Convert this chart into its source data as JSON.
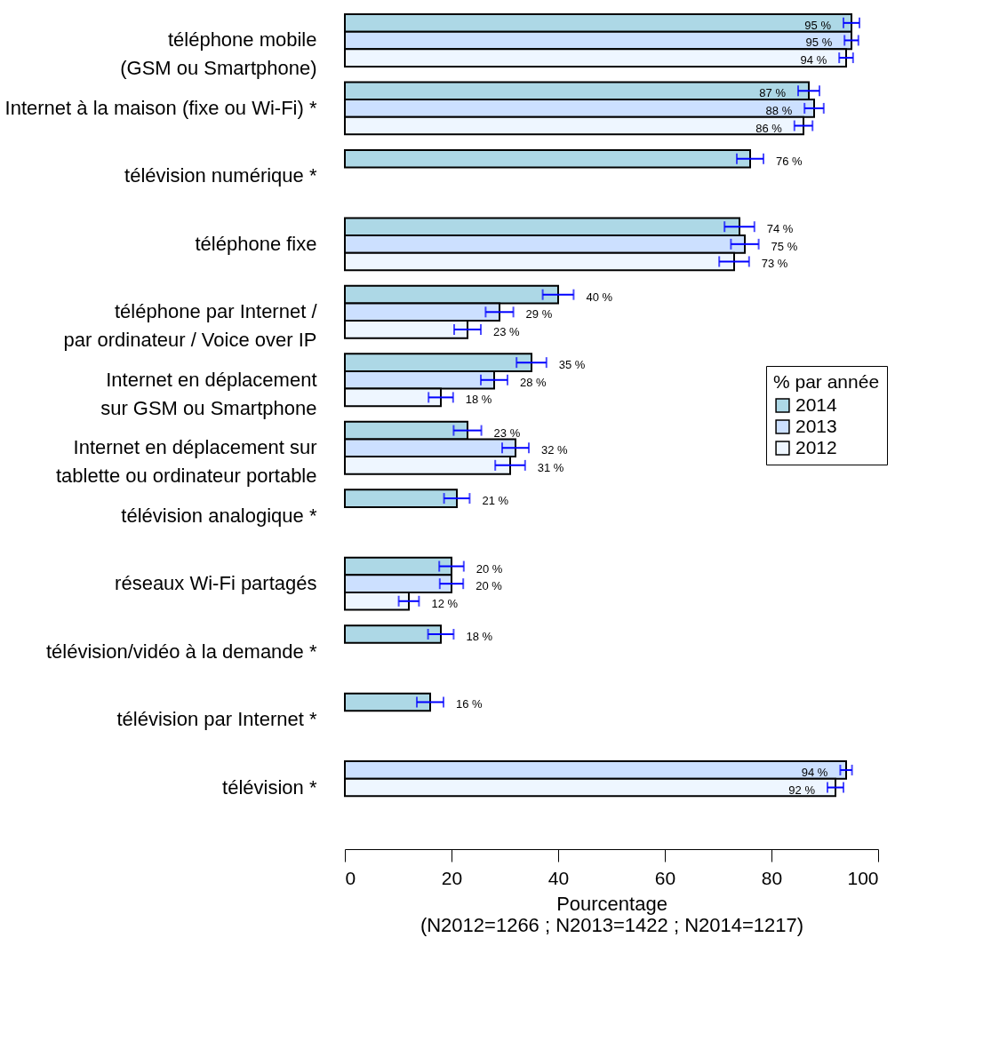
{
  "chart_data": {
    "type": "bar",
    "orientation": "horizontal",
    "categories": [
      "téléphone mobile \n(GSM ou Smartphone)",
      "Internet à la maison (fixe ou Wi-Fi) *",
      "télévision numérique *",
      "téléphone fixe",
      "téléphone par Internet /\npar ordinateur / Voice over IP",
      "Internet en déplacement \nsur GSM ou Smartphone",
      "Internet en déplacement sur \ntablette ou ordinateur portable",
      "télévision analogique *",
      "réseaux Wi-Fi partagés",
      "télévision/vidéo à la demande *",
      "télévision par Internet *",
      "télévision *"
    ],
    "series": [
      {
        "name": "2014",
        "color": "#add8e6",
        "values": [
          95,
          87,
          76,
          74,
          40,
          35,
          23,
          21,
          20,
          18,
          16,
          null
        ],
        "errors": [
          1.5,
          2,
          2.5,
          2.8,
          2.9,
          2.8,
          2.6,
          2.4,
          2.3,
          2.4,
          2.5,
          null
        ],
        "value_labels": [
          "95 %",
          "87 %",
          "76 %",
          "74 %",
          "40 %",
          "35 %",
          "23 %",
          "21 %",
          "20 %",
          "18 %",
          "16 %",
          null
        ]
      },
      {
        "name": "2013",
        "color": "#cce0ff",
        "values": [
          95,
          88,
          null,
          75,
          29,
          28,
          32,
          null,
          20,
          null,
          null,
          94
        ],
        "errors": [
          1.3,
          1.8,
          null,
          2.6,
          2.6,
          2.5,
          2.5,
          null,
          2.2,
          null,
          null,
          1.1
        ],
        "value_labels": [
          "95 %",
          "88 %",
          null,
          "75 %",
          "29 %",
          "28 %",
          "32 %",
          null,
          "20 %",
          null,
          null,
          "94 %"
        ]
      },
      {
        "name": "2012",
        "color": "#eef6ff",
        "values": [
          94,
          86,
          null,
          73,
          23,
          18,
          31,
          null,
          12,
          null,
          null,
          92
        ],
        "errors": [
          1.3,
          1.7,
          null,
          2.8,
          2.5,
          2.3,
          2.8,
          null,
          1.9,
          null,
          null,
          1.5
        ],
        "value_labels": [
          "94 %",
          "86 %",
          null,
          "73 %",
          "23 %",
          "18 %",
          "31 %",
          null,
          "12 %",
          null,
          null,
          "92 %"
        ]
      }
    ],
    "xlim": [
      0,
      100
    ],
    "xticks": [
      0,
      20,
      40,
      60,
      80,
      100
    ],
    "xlabel": "Pourcentage",
    "annotations": [
      "(N2012=1266 ; N2013=1422 ; N2014=1217)"
    ],
    "legend_title": "% par année",
    "legend": "right",
    "grid": false
  }
}
